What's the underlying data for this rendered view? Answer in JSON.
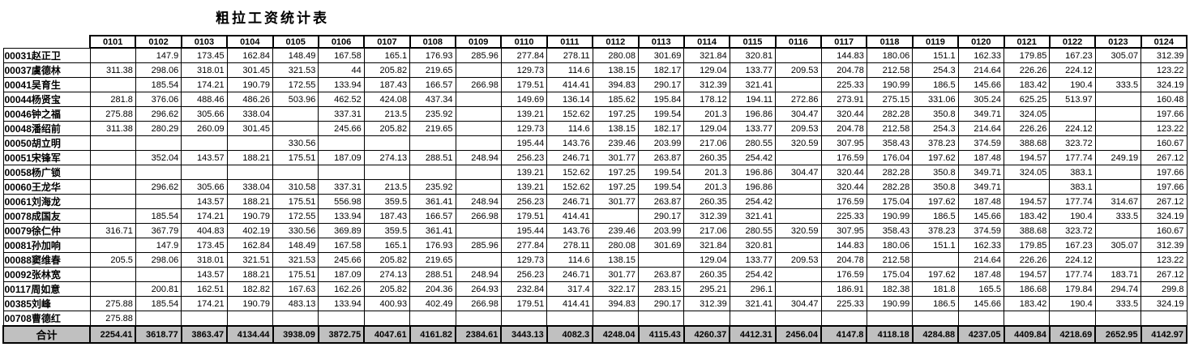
{
  "title": "粗拉工资统计表",
  "colors": {
    "total_row_bg": "#c0c0c0",
    "border": "#000000",
    "text": "#000000",
    "background": "#ffffff"
  },
  "table": {
    "columns": [
      "0101",
      "0102",
      "0103",
      "0104",
      "0105",
      "0106",
      "0107",
      "0108",
      "0109",
      "0110",
      "0111",
      "0112",
      "0113",
      "0114",
      "0115",
      "0116",
      "0117",
      "0118",
      "0119",
      "0120",
      "0121",
      "0122",
      "0123",
      "0124"
    ],
    "rows": [
      {
        "label": "00031赵正卫",
        "values": [
          "",
          "147.9",
          "173.45",
          "162.84",
          "148.49",
          "167.58",
          "165.1",
          "176.93",
          "285.96",
          "277.84",
          "278.11",
          "280.08",
          "301.69",
          "321.84",
          "320.81",
          "",
          "144.83",
          "180.06",
          "151.1",
          "162.33",
          "179.85",
          "167.23",
          "305.07",
          "312.39"
        ]
      },
      {
        "label": "00037虞德林",
        "values": [
          "311.38",
          "298.06",
          "318.01",
          "301.45",
          "321.53",
          "44",
          "205.82",
          "219.65",
          "",
          "129.73",
          "114.6",
          "138.15",
          "182.17",
          "129.04",
          "133.77",
          "209.53",
          "204.78",
          "212.58",
          "254.3",
          "214.64",
          "226.26",
          "224.12",
          "",
          "123.22"
        ]
      },
      {
        "label": "00041吴育生",
        "values": [
          "",
          "185.54",
          "174.21",
          "190.79",
          "172.55",
          "133.94",
          "187.43",
          "166.57",
          "266.98",
          "179.51",
          "414.41",
          "394.83",
          "290.17",
          "312.39",
          "321.41",
          "",
          "225.33",
          "190.99",
          "186.5",
          "145.66",
          "183.42",
          "190.4",
          "333.5",
          "324.19"
        ]
      },
      {
        "label": "00044杨贤宝",
        "values": [
          "281.8",
          "376.06",
          "488.46",
          "486.26",
          "503.96",
          "462.52",
          "424.08",
          "437.34",
          "",
          "149.69",
          "136.14",
          "185.62",
          "195.84",
          "178.12",
          "194.11",
          "272.86",
          "273.91",
          "275.15",
          "331.06",
          "305.24",
          "625.25",
          "513.97",
          "",
          "160.48"
        ]
      },
      {
        "label": "00046钟之福",
        "values": [
          "275.88",
          "296.62",
          "305.66",
          "338.04",
          "",
          "337.31",
          "213.5",
          "235.92",
          "",
          "139.21",
          "152.62",
          "197.25",
          "199.54",
          "201.3",
          "196.86",
          "304.47",
          "320.44",
          "282.28",
          "350.8",
          "349.71",
          "324.05",
          "",
          "",
          "197.66"
        ]
      },
      {
        "label": "00048潘绍前",
        "values": [
          "311.38",
          "280.29",
          "260.09",
          "301.45",
          "",
          "245.66",
          "205.82",
          "219.65",
          "",
          "129.73",
          "114.6",
          "138.15",
          "182.17",
          "129.04",
          "133.77",
          "209.53",
          "204.78",
          "212.58",
          "254.3",
          "214.64",
          "226.26",
          "224.12",
          "",
          "123.22"
        ]
      },
      {
        "label": "00050胡立明",
        "values": [
          "",
          "",
          "",
          "",
          "330.56",
          "",
          "",
          "",
          "",
          "195.44",
          "143.76",
          "239.46",
          "203.99",
          "217.06",
          "280.55",
          "320.59",
          "307.95",
          "358.43",
          "378.23",
          "374.59",
          "388.68",
          "323.72",
          "",
          "160.67"
        ]
      },
      {
        "label": "00051宋锋军",
        "values": [
          "",
          "352.04",
          "143.57",
          "188.21",
          "175.51",
          "187.09",
          "274.13",
          "288.51",
          "248.94",
          "256.23",
          "246.71",
          "301.77",
          "263.87",
          "260.35",
          "254.42",
          "",
          "176.59",
          "176.04",
          "197.62",
          "187.48",
          "194.57",
          "177.74",
          "249.19",
          "267.12"
        ]
      },
      {
        "label": "00058杨广锁",
        "values": [
          "",
          "",
          "",
          "",
          "",
          "",
          "",
          "",
          "",
          "139.21",
          "152.62",
          "197.25",
          "199.54",
          "201.3",
          "196.86",
          "304.47",
          "320.44",
          "282.28",
          "350.8",
          "349.71",
          "324.05",
          "383.1",
          "",
          "197.66"
        ]
      },
      {
        "label": "00060王龙华",
        "values": [
          "",
          "296.62",
          "305.66",
          "338.04",
          "310.58",
          "337.31",
          "213.5",
          "235.92",
          "",
          "139.21",
          "152.62",
          "197.25",
          "199.54",
          "201.3",
          "196.86",
          "",
          "320.44",
          "282.28",
          "350.8",
          "349.71",
          "",
          "383.1",
          "",
          "197.66"
        ]
      },
      {
        "label": "00061刘海龙",
        "values": [
          "",
          "",
          "143.57",
          "188.21",
          "175.51",
          "556.98",
          "359.5",
          "361.41",
          "248.94",
          "256.23",
          "246.71",
          "301.77",
          "263.87",
          "260.35",
          "254.42",
          "",
          "176.59",
          "175.04",
          "197.62",
          "187.48",
          "194.57",
          "177.74",
          "314.67",
          "267.12"
        ]
      },
      {
        "label": "00078成国友",
        "values": [
          "",
          "185.54",
          "174.21",
          "190.79",
          "172.55",
          "133.94",
          "187.43",
          "166.57",
          "266.98",
          "179.51",
          "414.41",
          "",
          "290.17",
          "312.39",
          "321.41",
          "",
          "225.33",
          "190.99",
          "186.5",
          "145.66",
          "183.42",
          "190.4",
          "333.5",
          "324.19"
        ]
      },
      {
        "label": "00079徐仁仲",
        "values": [
          "316.71",
          "367.79",
          "404.83",
          "402.19",
          "330.56",
          "369.89",
          "359.5",
          "361.41",
          "",
          "195.44",
          "143.76",
          "239.46",
          "203.99",
          "217.06",
          "280.55",
          "320.59",
          "307.95",
          "358.43",
          "378.23",
          "374.59",
          "388.68",
          "323.72",
          "",
          "160.67"
        ]
      },
      {
        "label": "00081孙加响",
        "values": [
          "",
          "147.9",
          "173.45",
          "162.84",
          "148.49",
          "167.58",
          "165.1",
          "176.93",
          "285.96",
          "277.84",
          "278.11",
          "280.08",
          "301.69",
          "321.84",
          "320.81",
          "",
          "144.83",
          "180.06",
          "151.1",
          "162.33",
          "179.85",
          "167.23",
          "305.07",
          "312.39"
        ]
      },
      {
        "label": "00088窦维春",
        "values": [
          "205.5",
          "298.06",
          "318.01",
          "321.51",
          "321.53",
          "245.66",
          "205.82",
          "219.65",
          "",
          "129.73",
          "114.6",
          "138.15",
          "",
          "129.04",
          "133.77",
          "209.53",
          "204.78",
          "212.58",
          "",
          "214.64",
          "226.26",
          "224.12",
          "",
          "123.22"
        ]
      },
      {
        "label": "00092张林宽",
        "values": [
          "",
          "",
          "143.57",
          "188.21",
          "175.51",
          "187.09",
          "274.13",
          "288.51",
          "248.94",
          "256.23",
          "246.71",
          "301.77",
          "263.87",
          "260.35",
          "254.42",
          "",
          "176.59",
          "175.04",
          "197.62",
          "187.48",
          "194.57",
          "177.74",
          "183.71",
          "267.12"
        ]
      },
      {
        "label": "00117周如意",
        "values": [
          "",
          "200.81",
          "162.51",
          "182.82",
          "167.63",
          "162.26",
          "205.82",
          "204.36",
          "264.93",
          "232.84",
          "317.4",
          "322.17",
          "283.15",
          "295.21",
          "296.1",
          "",
          "186.91",
          "182.38",
          "181.8",
          "165.5",
          "186.68",
          "179.84",
          "294.74",
          "299.8"
        ]
      },
      {
        "label": "00385刘峰",
        "values": [
          "275.88",
          "185.54",
          "174.21",
          "190.79",
          "483.13",
          "133.94",
          "400.93",
          "402.49",
          "266.98",
          "179.51",
          "414.41",
          "394.83",
          "290.17",
          "312.39",
          "321.41",
          "304.47",
          "225.33",
          "190.99",
          "186.5",
          "145.66",
          "183.42",
          "190.4",
          "333.5",
          "324.19"
        ]
      },
      {
        "label": "00708曹德红",
        "values": [
          "275.88",
          "",
          "",
          "",
          "",
          "",
          "",
          "",
          "",
          "",
          "",
          "",
          "",
          "",
          "",
          "",
          "",
          "",
          "",
          "",
          "",
          "",
          "",
          ""
        ]
      }
    ],
    "total": {
      "label": "合计",
      "values": [
        "2254.41",
        "3618.77",
        "3863.47",
        "4134.44",
        "3938.09",
        "3872.75",
        "4047.61",
        "4161.82",
        "2384.61",
        "3443.13",
        "4082.3",
        "4248.04",
        "4115.43",
        "4260.37",
        "4412.31",
        "2456.04",
        "4147.8",
        "4118.18",
        "4284.88",
        "4237.05",
        "4409.84",
        "4218.69",
        "2652.95",
        "4142.97"
      ]
    }
  }
}
